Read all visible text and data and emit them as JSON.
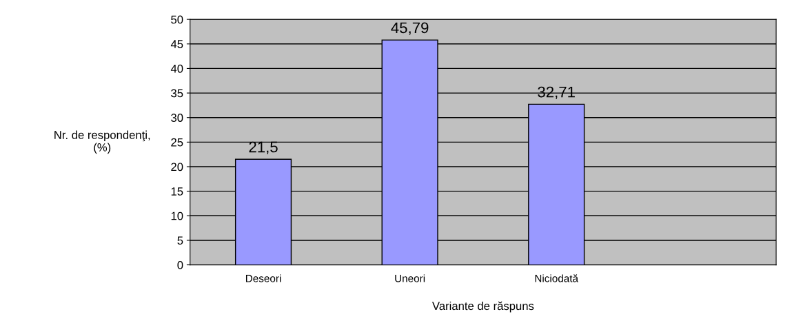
{
  "chart_data": {
    "type": "bar",
    "categories": [
      "Deseori",
      "Uneori",
      "Niciodată",
      null
    ],
    "values": [
      21.5,
      45.79,
      32.71,
      null
    ],
    "value_labels": [
      "21,5",
      "45,79",
      "32,71",
      null
    ],
    "color": "#9999ff",
    "xlabel": "Variante de răspuns",
    "ylabel": "Nr. de respondenţi,\n(%)",
    "ylim": [
      0,
      50
    ],
    "yticks": [
      0,
      5,
      10,
      15,
      20,
      25,
      30,
      35,
      40,
      45,
      50
    ],
    "grid": "y"
  }
}
